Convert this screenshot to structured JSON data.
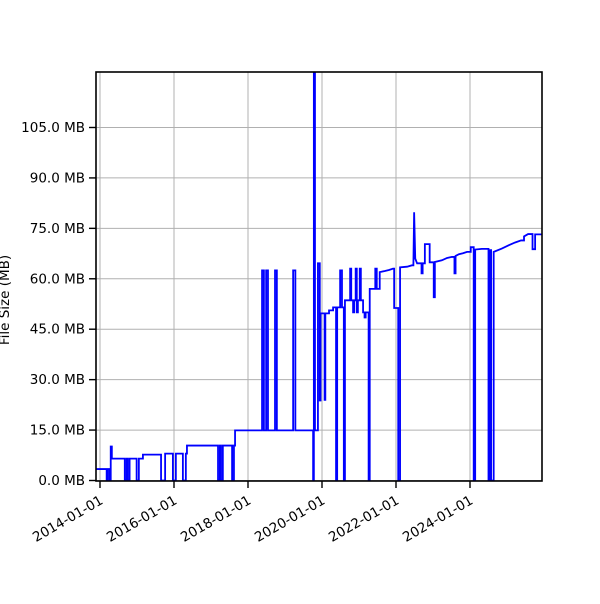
{
  "chart_data": {
    "type": "line",
    "title": "",
    "xlabel": "",
    "ylabel": "File Size (MB)",
    "legend": "none",
    "grid": true,
    "grid_color": "#b0b0b0",
    "line_color": "#0000ff",
    "background_color": "#ffffff",
    "ylim": [
      0,
      121.5
    ],
    "xlim_years": [
      2013.89,
      2025.95
    ],
    "y_ticks": [
      {
        "mb": 0,
        "label": "0.0 MB"
      },
      {
        "mb": 15,
        "label": "15.0 MB"
      },
      {
        "mb": 30,
        "label": "30.0 MB"
      },
      {
        "mb": 45,
        "label": "45.0 MB"
      },
      {
        "mb": 60,
        "label": "60.0 MB"
      },
      {
        "mb": 75,
        "label": "75.0 MB"
      },
      {
        "mb": 90,
        "label": "90.0 MB"
      },
      {
        "mb": 105,
        "label": "105.0 MB"
      }
    ],
    "x_ticks": [
      {
        "year": 2014,
        "label": "2014-01-01"
      },
      {
        "year": 2016,
        "label": "2016-01-01"
      },
      {
        "year": 2018,
        "label": "2018-01-01"
      },
      {
        "year": 2020,
        "label": "2020-01-01"
      },
      {
        "year": 2022,
        "label": "2022-01-01"
      },
      {
        "year": 2024,
        "label": "2024-01-01"
      }
    ],
    "points": [
      [
        2013.89,
        3.4
      ],
      [
        2014.18,
        3.4
      ],
      [
        2014.18,
        0
      ],
      [
        2014.21,
        0
      ],
      [
        2014.21,
        3.4
      ],
      [
        2014.26,
        3.4
      ],
      [
        2014.26,
        0
      ],
      [
        2014.29,
        0
      ],
      [
        2014.29,
        10.1
      ],
      [
        2014.32,
        10.1
      ],
      [
        2014.32,
        6.5
      ],
      [
        2014.67,
        6.5
      ],
      [
        2014.67,
        0
      ],
      [
        2014.72,
        0
      ],
      [
        2014.72,
        6.5
      ],
      [
        2014.75,
        6.5
      ],
      [
        2014.75,
        0
      ],
      [
        2014.8,
        0
      ],
      [
        2014.8,
        6.5
      ],
      [
        2014.99,
        6.5
      ],
      [
        2014.99,
        0
      ],
      [
        2015.05,
        0
      ],
      [
        2015.05,
        6.5
      ],
      [
        2015.16,
        6.5
      ],
      [
        2015.16,
        7.7
      ],
      [
        2015.65,
        7.7
      ],
      [
        2015.65,
        0
      ],
      [
        2015.76,
        0
      ],
      [
        2015.76,
        8
      ],
      [
        2015.97,
        8
      ],
      [
        2015.97,
        0
      ],
      [
        2016.05,
        0
      ],
      [
        2016.05,
        8
      ],
      [
        2016.24,
        8
      ],
      [
        2016.24,
        0
      ],
      [
        2016.32,
        0
      ],
      [
        2016.32,
        8
      ],
      [
        2016.35,
        8
      ],
      [
        2016.35,
        10.4
      ],
      [
        2017.19,
        10.4
      ],
      [
        2017.19,
        0
      ],
      [
        2017.24,
        0
      ],
      [
        2017.24,
        10.4
      ],
      [
        2017.27,
        10.4
      ],
      [
        2017.27,
        0
      ],
      [
        2017.32,
        0
      ],
      [
        2017.32,
        10.4
      ],
      [
        2017.57,
        10.4
      ],
      [
        2017.57,
        0
      ],
      [
        2017.62,
        0
      ],
      [
        2017.62,
        10.4
      ],
      [
        2017.65,
        10.4
      ],
      [
        2017.65,
        14.9
      ],
      [
        2018.38,
        14.9
      ],
      [
        2018.38,
        62.5
      ],
      [
        2018.43,
        62.5
      ],
      [
        2018.43,
        14.9
      ],
      [
        2018.49,
        14.9
      ],
      [
        2018.49,
        62.5
      ],
      [
        2018.54,
        62.5
      ],
      [
        2018.54,
        14.9
      ],
      [
        2018.73,
        14.9
      ],
      [
        2018.73,
        62.5
      ],
      [
        2018.78,
        62.5
      ],
      [
        2018.78,
        14.9
      ],
      [
        2019.22,
        14.9
      ],
      [
        2019.22,
        62.5
      ],
      [
        2019.28,
        62.5
      ],
      [
        2019.28,
        14.9
      ],
      [
        2019.76,
        14.9
      ],
      [
        2019.76,
        0
      ],
      [
        2019.78,
        0
      ],
      [
        2019.78,
        121.5
      ],
      [
        2019.81,
        121.5
      ],
      [
        2019.81,
        14.9
      ],
      [
        2019.89,
        14.9
      ],
      [
        2019.89,
        64.6
      ],
      [
        2019.94,
        64.6
      ],
      [
        2019.94,
        23.8
      ],
      [
        2019.96,
        23.8
      ],
      [
        2019.96,
        49.7
      ],
      [
        2020.07,
        49.7
      ],
      [
        2020.07,
        24
      ],
      [
        2020.09,
        24
      ],
      [
        2020.09,
        49.7
      ],
      [
        2020.19,
        49.7
      ],
      [
        2020.19,
        50.6
      ],
      [
        2020.3,
        50.6
      ],
      [
        2020.3,
        51.5
      ],
      [
        2020.38,
        51.5
      ],
      [
        2020.38,
        0
      ],
      [
        2020.41,
        0
      ],
      [
        2020.41,
        51.5
      ],
      [
        2020.49,
        51.5
      ],
      [
        2020.49,
        62.5
      ],
      [
        2020.54,
        62.5
      ],
      [
        2020.54,
        51.5
      ],
      [
        2020.59,
        51.5
      ],
      [
        2020.59,
        0
      ],
      [
        2020.62,
        0
      ],
      [
        2020.62,
        53.6
      ],
      [
        2020.76,
        53.6
      ],
      [
        2020.76,
        63
      ],
      [
        2020.79,
        63
      ],
      [
        2020.79,
        53.6
      ],
      [
        2020.84,
        53.6
      ],
      [
        2020.84,
        50
      ],
      [
        2020.87,
        50
      ],
      [
        2020.87,
        53.6
      ],
      [
        2020.91,
        53.6
      ],
      [
        2020.91,
        63
      ],
      [
        2020.94,
        63
      ],
      [
        2020.94,
        50
      ],
      [
        2020.97,
        50
      ],
      [
        2020.97,
        53.6
      ],
      [
        2021.02,
        53.6
      ],
      [
        2021.02,
        63
      ],
      [
        2021.05,
        63
      ],
      [
        2021.05,
        53.6
      ],
      [
        2021.11,
        53.6
      ],
      [
        2021.11,
        50
      ],
      [
        2021.15,
        50
      ],
      [
        2021.15,
        48.5
      ],
      [
        2021.18,
        48.5
      ],
      [
        2021.18,
        50
      ],
      [
        2021.26,
        50
      ],
      [
        2021.26,
        0
      ],
      [
        2021.29,
        0
      ],
      [
        2021.29,
        57
      ],
      [
        2021.44,
        57
      ],
      [
        2021.44,
        63
      ],
      [
        2021.48,
        63
      ],
      [
        2021.48,
        57
      ],
      [
        2021.56,
        57
      ],
      [
        2021.56,
        62
      ],
      [
        2021.7,
        62.3
      ],
      [
        2021.81,
        62.6
      ],
      [
        2021.92,
        63
      ],
      [
        2021.95,
        63
      ],
      [
        2021.95,
        51.3
      ],
      [
        2022.06,
        51.3
      ],
      [
        2022.06,
        0
      ],
      [
        2022.11,
        0
      ],
      [
        2022.11,
        63.4
      ],
      [
        2022.3,
        63.6
      ],
      [
        2022.43,
        64
      ],
      [
        2022.47,
        64
      ],
      [
        2022.49,
        79.8
      ],
      [
        2022.52,
        66
      ],
      [
        2022.57,
        64.6
      ],
      [
        2022.69,
        64.6
      ],
      [
        2022.69,
        61.6
      ],
      [
        2022.72,
        61.6
      ],
      [
        2022.72,
        64.6
      ],
      [
        2022.78,
        64.6
      ],
      [
        2022.78,
        70.3
      ],
      [
        2022.91,
        70.3
      ],
      [
        2022.91,
        64.9
      ],
      [
        2023.02,
        64.9
      ],
      [
        2023.02,
        54.5
      ],
      [
        2023.05,
        54.5
      ],
      [
        2023.05,
        65
      ],
      [
        2023.24,
        65.5
      ],
      [
        2023.38,
        66.2
      ],
      [
        2023.51,
        66.5
      ],
      [
        2023.58,
        66.5
      ],
      [
        2023.58,
        61.6
      ],
      [
        2023.61,
        61.6
      ],
      [
        2023.61,
        66.8
      ],
      [
        2023.7,
        67.3
      ],
      [
        2023.81,
        67.6
      ],
      [
        2023.92,
        68
      ],
      [
        2024.02,
        68
      ],
      [
        2024.02,
        69.4
      ],
      [
        2024.1,
        69.4
      ],
      [
        2024.1,
        0
      ],
      [
        2024.14,
        0
      ],
      [
        2024.14,
        68.7
      ],
      [
        2024.32,
        68.9
      ],
      [
        2024.5,
        68.9
      ],
      [
        2024.5,
        0
      ],
      [
        2024.54,
        0
      ],
      [
        2024.54,
        68.5
      ],
      [
        2024.57,
        68.5
      ],
      [
        2024.57,
        0
      ],
      [
        2024.64,
        0
      ],
      [
        2024.64,
        68
      ],
      [
        2024.86,
        69
      ],
      [
        2025.05,
        70
      ],
      [
        2025.22,
        70.8
      ],
      [
        2025.38,
        71.4
      ],
      [
        2025.46,
        71.4
      ],
      [
        2025.46,
        72.6
      ],
      [
        2025.57,
        73.3
      ],
      [
        2025.69,
        73.3
      ],
      [
        2025.69,
        68.8
      ],
      [
        2025.76,
        68.8
      ],
      [
        2025.76,
        73.2
      ],
      [
        2025.95,
        73.2
      ]
    ]
  }
}
